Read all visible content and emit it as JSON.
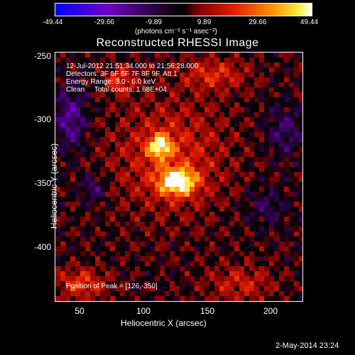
{
  "colorbar": {
    "ticks": [
      "-49.44",
      "-29.66",
      "-9.89",
      "9.89",
      "29.66",
      "49.44"
    ],
    "unit_label": "(photons cm⁻² s⁻¹ asec⁻²)"
  },
  "header": {
    "title": "Reconstructed RHESSI Image"
  },
  "info": {
    "time": "12-Jul-2012 21:51:34.000 to 21:56:28.000",
    "detectors": "Detectors: 3F 5F 6F 7F 8F 9F, Att 1",
    "energy": "Energy Range: 3.0 - 6.0 keV",
    "clean": "Clean     Total counts: 1.68E+04",
    "peak": "Position of Peak = [126,-350]"
  },
  "axes": {
    "xlabel": "Heliocentric X (arcsec)",
    "ylabel": "Heliocentric Y (arcsec)",
    "xticks": [
      "50",
      "100",
      "150",
      "200"
    ],
    "yticks": [
      "-250",
      "-300",
      "-350",
      "-400"
    ]
  },
  "footer": {
    "timestamp": "2-May-2014 23:24"
  },
  "chart_data": {
    "type": "heatmap",
    "title": "Reconstructed RHESSI Image",
    "xlabel": "Heliocentric X (arcsec)",
    "ylabel": "Heliocentric Y (arcsec)",
    "xlim": [
      30,
      225
    ],
    "ylim": [
      -445,
      -248
    ],
    "color_range": [
      -49.44,
      49.44
    ],
    "colorbar_ticks": [
      -49.44,
      -29.66,
      -9.89,
      9.89,
      29.66,
      49.44
    ],
    "peak_position": [
      126,
      -350
    ],
    "peaks": [
      {
        "x": 126,
        "y": -350,
        "value": 49.44
      },
      {
        "x": 112,
        "y": -322,
        "value": 40
      }
    ]
  }
}
